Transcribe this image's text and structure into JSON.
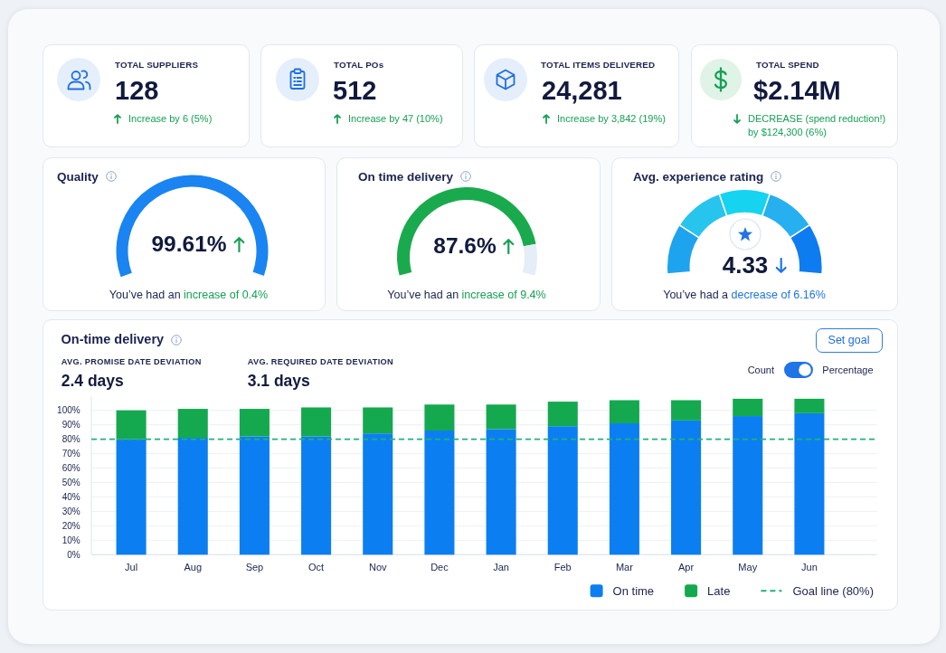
{
  "chart_data": [
    {
      "type": "other",
      "title": "TOTAL SUPPLIERS",
      "annotations": [
        "128",
        "Increase by 6 (5%)"
      ]
    },
    {
      "type": "other",
      "title": "TOTAL POs",
      "annotations": [
        "512",
        "Increase by 47 (10%)"
      ]
    },
    {
      "type": "other",
      "title": "TOTAL ITEMS DELIVERED",
      "annotations": [
        "24,281",
        "Increase by 3,842 (19%)"
      ]
    },
    {
      "type": "other",
      "title": "TOTAL SPEND",
      "annotations": [
        "$2.14M",
        "DECREASE (spend reduction!)",
        "by $124,300 (6%)"
      ]
    },
    {
      "type": "donut",
      "title": "Quality",
      "categories": [
        null,
        null
      ],
      "values": [
        99.61,
        0.39
      ],
      "colors": [
        "#1a84f2",
        "#e4edf8"
      ],
      "annotations": [
        "99.61%",
        "You’ve had an",
        "increase of 0.4%"
      ]
    },
    {
      "type": "donut",
      "title": "On time delivery",
      "categories": [
        null,
        null
      ],
      "values": [
        87.6,
        12.4
      ],
      "colors": [
        "#1aaa4e",
        "#e4edf8"
      ],
      "annotations": [
        "87.6%",
        "You’ve had an",
        "increase of 9.4%"
      ]
    },
    {
      "type": "donut",
      "title": "Avg. experience rating",
      "categories": [
        null,
        null,
        null,
        null,
        null
      ],
      "values": [
        20,
        20,
        20,
        20,
        20
      ],
      "colors": [
        "#1ea3ee",
        "#27c4ee",
        "#16d3ef",
        "#26b0ef",
        "#0e7cf1"
      ],
      "annotations": [
        "4.33",
        "You’ve had a",
        "decrease of 6.16%"
      ]
    },
    {
      "type": "bar",
      "title": "On-time delivery",
      "annotations": [
        "AVG. PROMISE DATE DEVIATION",
        "2.4 days",
        "AVG. REQUIRED DATE DEVIATION",
        "3.1 days",
        "Set goal",
        "Count",
        "Percentage"
      ],
      "categories": [
        "Jul",
        "Aug",
        "Sep",
        "Oct",
        "Nov",
        "Dec",
        "Jan",
        "Feb",
        "Mar",
        "Apr",
        "May",
        "Jun"
      ],
      "series": [
        {
          "name": "On time",
          "color": "#0b7ff1",
          "values": [
            80,
            81,
            82,
            82,
            84,
            86,
            87,
            89,
            91,
            93,
            96,
            98
          ]
        },
        {
          "name": "Late",
          "color": "#14a94f",
          "values": [
            20,
            20,
            19,
            20,
            18,
            18,
            17,
            17,
            16,
            14,
            12,
            10
          ]
        }
      ],
      "stacked": true,
      "ylim": [
        0,
        110
      ],
      "yticks": [
        {
          "value": 0,
          "label": "0%"
        },
        {
          "value": 10,
          "label": "10%"
        },
        {
          "value": 20,
          "label": "20%"
        },
        {
          "value": 30,
          "label": "30%"
        },
        {
          "value": 40,
          "label": "40%"
        },
        {
          "value": 50,
          "label": "50%"
        },
        {
          "value": 60,
          "label": "60%"
        },
        {
          "value": 70,
          "label": "70%"
        },
        {
          "value": 80,
          "label": "80%"
        },
        {
          "value": 90,
          "label": "90%"
        },
        {
          "value": 100,
          "label": "100%"
        }
      ],
      "grid": "y",
      "legend": "bottom right",
      "ref_lines": [
        {
          "axis": "y",
          "value": 80,
          "label": "Goal line (80%)",
          "color": "#1fb37a",
          "line_style": "dashed"
        }
      ]
    }
  ]
}
